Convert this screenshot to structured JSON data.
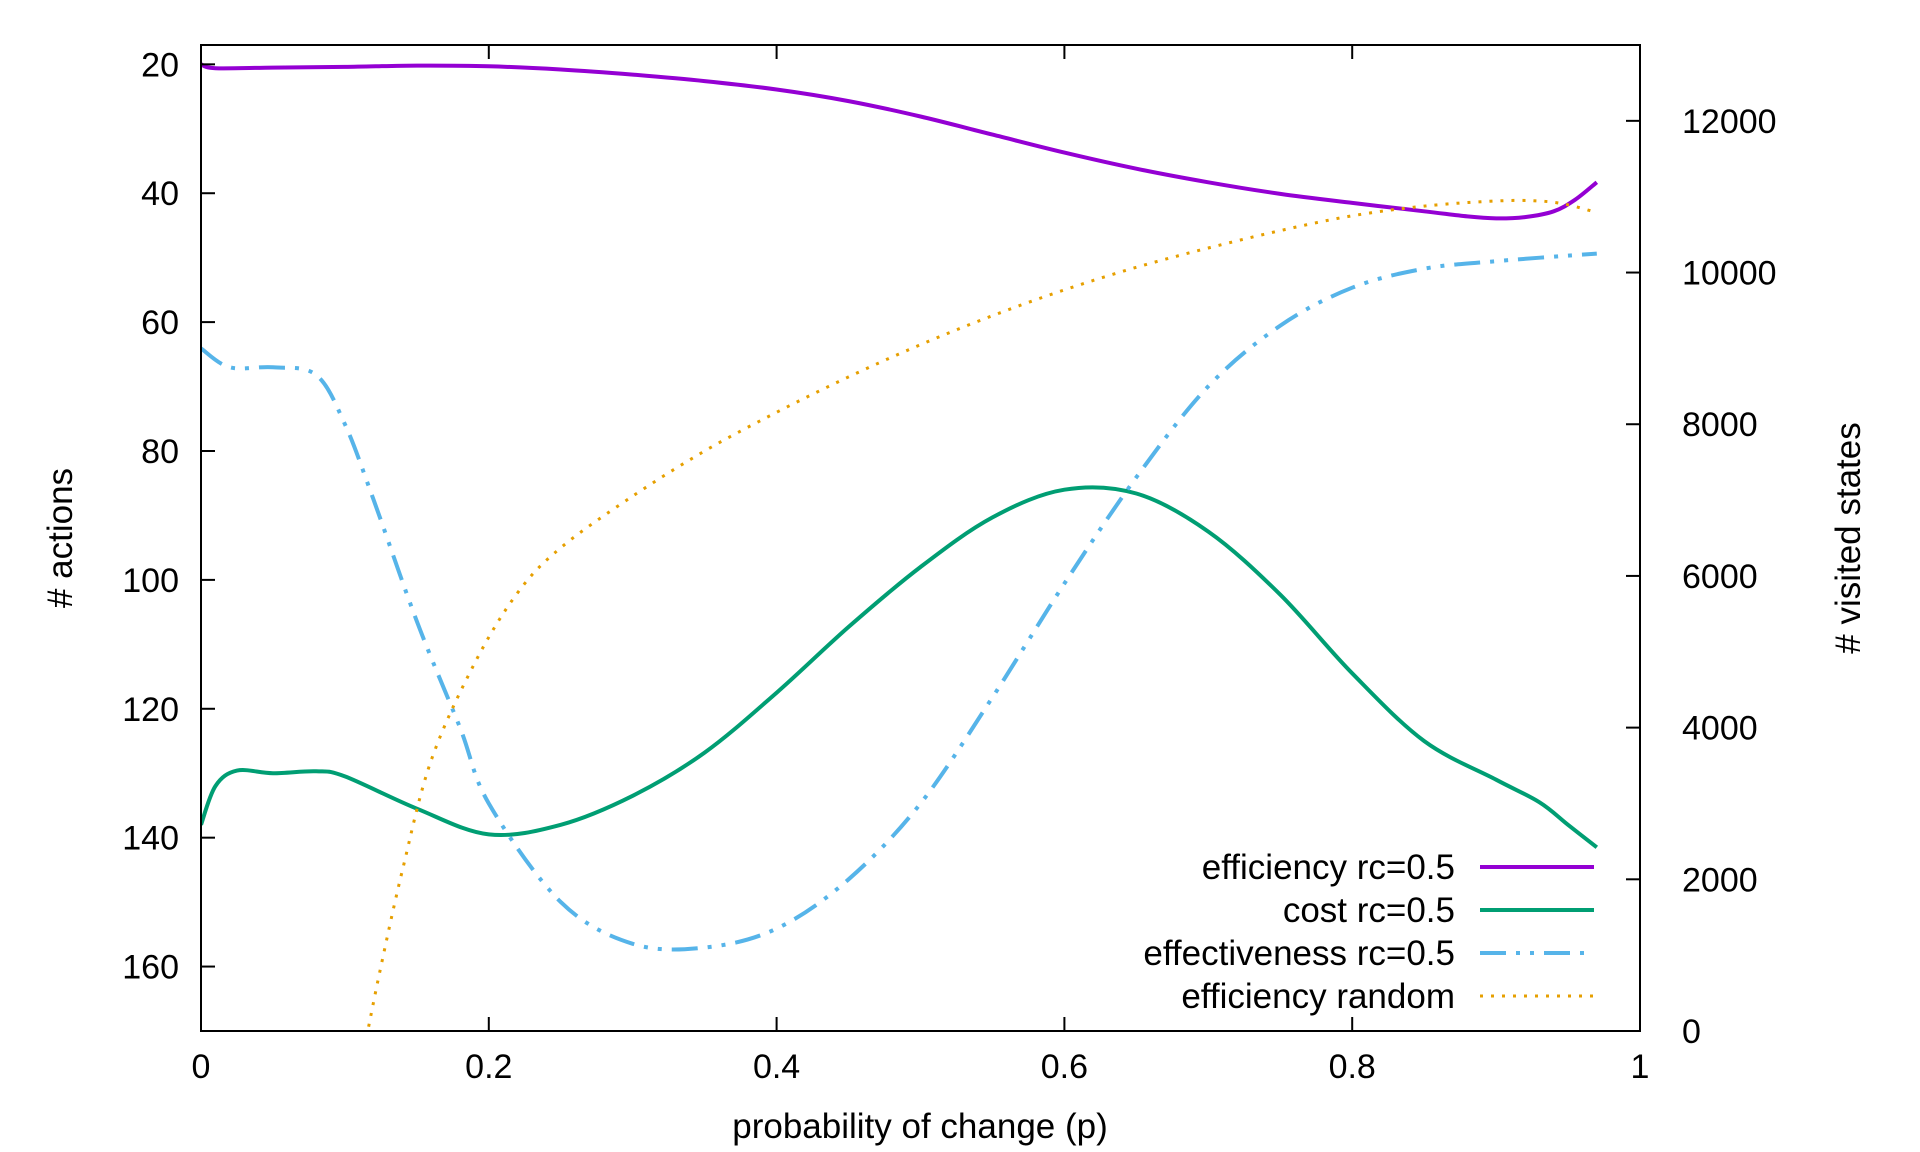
{
  "chart_data": {
    "type": "line",
    "xlabel": "probability of change (p)",
    "ylabel": "# actions",
    "y2label": "# visited states",
    "xlim": [
      0,
      1
    ],
    "ylim": [
      170,
      17
    ],
    "y_inverted": true,
    "y2lim": [
      0,
      13000
    ],
    "x_ticks": [
      {
        "value": 0,
        "label": "0"
      },
      {
        "value": 0.2,
        "label": "0.2"
      },
      {
        "value": 0.4,
        "label": "0.4"
      },
      {
        "value": 0.6,
        "label": "0.6"
      },
      {
        "value": 0.8,
        "label": "0.8"
      },
      {
        "value": 1,
        "label": "1"
      }
    ],
    "y_ticks": [
      {
        "value": 20,
        "label": "20"
      },
      {
        "value": 40,
        "label": "40"
      },
      {
        "value": 60,
        "label": "60"
      },
      {
        "value": 80,
        "label": "80"
      },
      {
        "value": 100,
        "label": "100"
      },
      {
        "value": 120,
        "label": "120"
      },
      {
        "value": 140,
        "label": "140"
      },
      {
        "value": 160,
        "label": "160"
      }
    ],
    "y2_ticks": [
      {
        "value": 0,
        "label": "0"
      },
      {
        "value": 2000,
        "label": "2000"
      },
      {
        "value": 4000,
        "label": "4000"
      },
      {
        "value": 6000,
        "label": "6000"
      },
      {
        "value": 8000,
        "label": "8000"
      },
      {
        "value": 10000,
        "label": "10000"
      },
      {
        "value": 12000,
        "label": "12000"
      }
    ],
    "grid": false,
    "legend_position": "bottom-right",
    "series": [
      {
        "name": "efficiency rc=0.5",
        "axis": "y",
        "color": "#9400d3",
        "dash": "solid",
        "points": [
          [
            0,
            20
          ],
          [
            0.01,
            20.6
          ],
          [
            0.05,
            20.5
          ],
          [
            0.1,
            20.4
          ],
          [
            0.15,
            20.2
          ],
          [
            0.2,
            20.3
          ],
          [
            0.25,
            20.8
          ],
          [
            0.3,
            21.6
          ],
          [
            0.35,
            22.6
          ],
          [
            0.4,
            23.9
          ],
          [
            0.45,
            25.7
          ],
          [
            0.5,
            28.1
          ],
          [
            0.55,
            30.9
          ],
          [
            0.6,
            33.7
          ],
          [
            0.65,
            36.2
          ],
          [
            0.7,
            38.3
          ],
          [
            0.75,
            40.1
          ],
          [
            0.8,
            41.5
          ],
          [
            0.85,
            42.8
          ],
          [
            0.88,
            43.6
          ],
          [
            0.9,
            43.9
          ],
          [
            0.92,
            43.7
          ],
          [
            0.94,
            42.8
          ],
          [
            0.955,
            41.0
          ],
          [
            0.97,
            38.3
          ]
        ]
      },
      {
        "name": "cost rc=0.5",
        "axis": "y",
        "color": "#009e73",
        "dash": "solid",
        "points": [
          [
            0,
            138
          ],
          [
            0.01,
            132
          ],
          [
            0.025,
            129.6
          ],
          [
            0.05,
            130
          ],
          [
            0.08,
            129.7
          ],
          [
            0.1,
            130.5
          ],
          [
            0.15,
            135.5
          ],
          [
            0.2,
            139.5
          ],
          [
            0.25,
            138
          ],
          [
            0.3,
            133.5
          ],
          [
            0.35,
            126.8
          ],
          [
            0.4,
            117.5
          ],
          [
            0.45,
            107.3
          ],
          [
            0.5,
            98
          ],
          [
            0.55,
            90.3
          ],
          [
            0.6,
            86
          ],
          [
            0.65,
            86.6
          ],
          [
            0.7,
            92.5
          ],
          [
            0.75,
            102.3
          ],
          [
            0.8,
            114.5
          ],
          [
            0.85,
            125
          ],
          [
            0.9,
            131
          ],
          [
            0.93,
            134.5
          ],
          [
            0.95,
            138
          ],
          [
            0.97,
            141.5
          ]
        ]
      },
      {
        "name": "effectiveness rc=0.5",
        "axis": "y2",
        "color": "#56b4e9",
        "dash": "dash-dot",
        "points": [
          [
            0,
            9000
          ],
          [
            0.02,
            8750
          ],
          [
            0.05,
            8750
          ],
          [
            0.08,
            8650
          ],
          [
            0.1,
            8000
          ],
          [
            0.12,
            7000
          ],
          [
            0.15,
            5400
          ],
          [
            0.18,
            4000
          ],
          [
            0.2,
            3000
          ],
          [
            0.25,
            1700
          ],
          [
            0.3,
            1150
          ],
          [
            0.35,
            1100
          ],
          [
            0.4,
            1350
          ],
          [
            0.45,
            2000
          ],
          [
            0.5,
            3000
          ],
          [
            0.55,
            4400
          ],
          [
            0.6,
            5900
          ],
          [
            0.65,
            7300
          ],
          [
            0.7,
            8500
          ],
          [
            0.75,
            9300
          ],
          [
            0.8,
            9800
          ],
          [
            0.85,
            10050
          ],
          [
            0.9,
            10150
          ],
          [
            0.97,
            10250
          ]
        ]
      },
      {
        "name": "efficiency random",
        "axis": "y",
        "color": "#e69f00",
        "dash": "dotted",
        "points": [
          [
            0.115,
            171
          ],
          [
            0.125,
            160
          ],
          [
            0.14,
            145
          ],
          [
            0.16,
            128
          ],
          [
            0.19,
            113
          ],
          [
            0.22,
            102
          ],
          [
            0.25,
            95
          ],
          [
            0.3,
            87
          ],
          [
            0.35,
            80
          ],
          [
            0.4,
            74
          ],
          [
            0.45,
            68.5
          ],
          [
            0.5,
            63.5
          ],
          [
            0.55,
            59
          ],
          [
            0.6,
            55
          ],
          [
            0.65,
            51.5
          ],
          [
            0.7,
            48.5
          ],
          [
            0.75,
            45.8
          ],
          [
            0.8,
            43.5
          ],
          [
            0.85,
            42
          ],
          [
            0.9,
            41.2
          ],
          [
            0.93,
            41.2
          ],
          [
            0.95,
            41.8
          ],
          [
            0.97,
            43
          ]
        ]
      }
    ]
  }
}
